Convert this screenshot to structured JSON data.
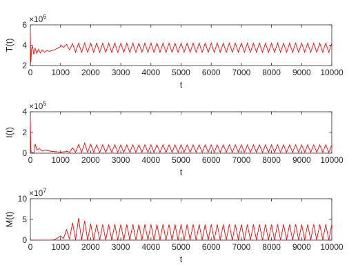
{
  "chart_data": [
    {
      "type": "line",
      "ylabel": "T(t)",
      "xlabel": "t",
      "exponent": {
        "base": "×10",
        "power": "6"
      },
      "xlim": [
        0,
        10000
      ],
      "ylim": [
        2,
        6
      ],
      "xticks": [
        "0",
        "1000",
        "2000",
        "3000",
        "4000",
        "5000",
        "6000",
        "7000",
        "8000",
        "9000",
        "10000"
      ],
      "yticks": [
        "2",
        "4",
        "6"
      ],
      "color": "#ff0000",
      "series": [
        {
          "transient": [
            [
              0,
              5.1
            ],
            [
              15,
              2.3
            ],
            [
              40,
              3.6
            ],
            [
              75,
              3.9
            ],
            [
              110,
              3.1
            ],
            [
              160,
              3.7
            ],
            [
              210,
              3.2
            ],
            [
              270,
              3.6
            ],
            [
              330,
              3.25
            ],
            [
              400,
              3.55
            ],
            [
              470,
              3.3
            ],
            [
              540,
              3.5
            ],
            [
              620,
              3.4
            ],
            [
              700,
              3.45
            ],
            [
              800,
              3.55
            ],
            [
              900,
              3.7
            ],
            [
              1000,
              3.85
            ],
            [
              1100,
              3.95
            ],
            [
              1200,
              4.0
            ],
            [
              1300,
              4.05
            ]
          ],
          "oscillation": {
            "start": 1000,
            "end": 10000,
            "period": 200,
            "min_start": 3.9,
            "max_start": 4.0,
            "min": 3.3,
            "max": 4.2,
            "ramp_end": 1500
          }
        }
      ]
    },
    {
      "type": "line",
      "ylabel": "I(t)",
      "xlabel": "t",
      "exponent": {
        "base": "×10",
        "power": "5"
      },
      "xlim": [
        0,
        10000
      ],
      "ylim": [
        0,
        4
      ],
      "xticks": [
        "0",
        "1000",
        "2000",
        "3000",
        "4000",
        "5000",
        "6000",
        "7000",
        "8000",
        "9000",
        "10000"
      ],
      "yticks": [
        "0",
        "2",
        "4"
      ],
      "color": "#ff0000",
      "series": [
        {
          "transient": [
            [
              0,
              3.3
            ],
            [
              15,
              0.3
            ],
            [
              50,
              0.05
            ],
            [
              120,
              0.05
            ],
            [
              160,
              0.9
            ],
            [
              220,
              0.3
            ],
            [
              300,
              0.45
            ],
            [
              400,
              0.2
            ],
            [
              500,
              0.3
            ],
            [
              650,
              0.2
            ],
            [
              800,
              0.15
            ],
            [
              1000,
              0.1
            ],
            [
              1200,
              0.15
            ]
          ],
          "oscillation": {
            "start": 1200,
            "end": 10000,
            "period": 200,
            "min_start": 0.1,
            "max_start": 0.2,
            "min": 0.08,
            "max": 0.8,
            "peak_max": 1.0,
            "peak_at": 1700,
            "ramp_end": 1700
          }
        }
      ]
    },
    {
      "type": "line",
      "ylabel": "M(t)",
      "xlabel": "t",
      "exponent": {
        "base": "×10",
        "power": "7"
      },
      "xlim": [
        0,
        10000
      ],
      "ylim": [
        0,
        10
      ],
      "xticks": [
        "0",
        "1000",
        "2000",
        "3000",
        "4000",
        "5000",
        "6000",
        "7000",
        "8000",
        "9000",
        "10000"
      ],
      "yticks": [
        "0",
        "5",
        "10"
      ],
      "color": "#ff0000",
      "series": [
        {
          "transient": [
            [
              0,
              0
            ],
            [
              700,
              0
            ],
            [
              800,
              0.1
            ],
            [
              900,
              0.5
            ],
            [
              1000,
              1.0
            ]
          ],
          "oscillation": {
            "start": 1000,
            "end": 10000,
            "period": 200,
            "min_start": 0.5,
            "max_start": 1.0,
            "min": 0.0,
            "max": 3.8,
            "peak_max": 5.5,
            "peak_at": 1550,
            "ramp_end": 1550
          }
        }
      ]
    }
  ]
}
